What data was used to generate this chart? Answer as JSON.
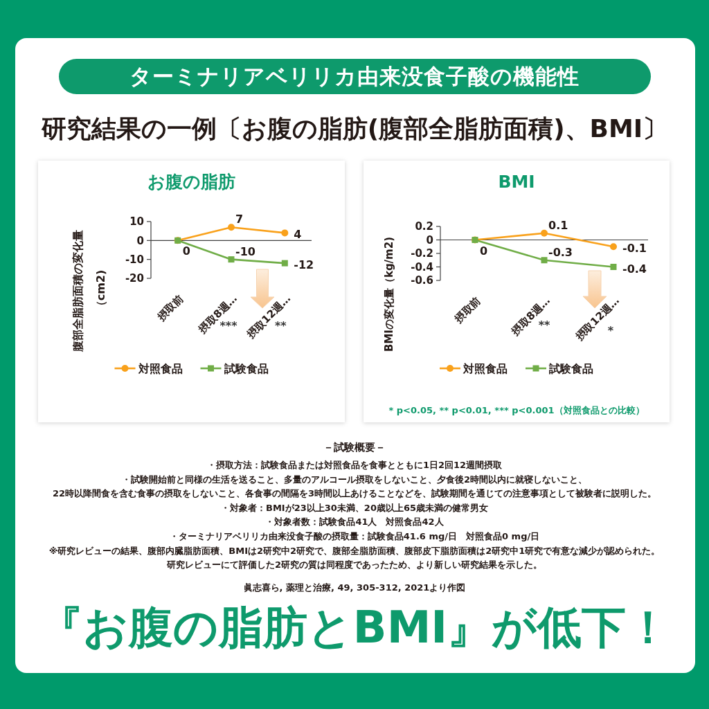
{
  "chart_data": [
    {
      "type": "other",
      "title": "ターミナリアベリリカ由来没食子酸の機能性",
      "subtitle": "研究結果の一例〔お腹の脂肪(腹部全脂肪面積)、BMI〕"
    },
    {
      "type": "line",
      "title": "お腹の脂肪",
      "ylabel": "腹部全脂肪面積の変化量（cm2)",
      "categories": [
        "摂取前",
        "摂取8週…",
        "摂取12週…"
      ],
      "series": [
        {
          "name": "対照食品",
          "color": "#f9a11b",
          "marker": "circle",
          "values": [
            0,
            7,
            4
          ],
          "value_labels": [
            null,
            "7",
            "4"
          ]
        },
        {
          "name": "試験食品",
          "color": "#70ad47",
          "marker": "square",
          "values": [
            0,
            -10,
            -12
          ],
          "value_labels": [
            "0",
            "-10",
            "-12"
          ]
        }
      ],
      "ylim": [
        -20,
        10
      ],
      "yticks": [
        -20,
        -10,
        0,
        10
      ],
      "legend": "bottom",
      "annotations": [
        "***",
        "**"
      ]
    },
    {
      "type": "line",
      "title": "BMI",
      "ylabel": "BMIの変化量（kg/m2)",
      "categories": [
        "摂取前",
        "摂取8週…",
        "摂取12週…"
      ],
      "series": [
        {
          "name": "対照食品",
          "color": "#f9a11b",
          "marker": "circle",
          "values": [
            0,
            0.1,
            -0.1
          ],
          "value_labels": [
            null,
            "0.1",
            "-0.1"
          ]
        },
        {
          "name": "試験食品",
          "color": "#70ad47",
          "marker": "square",
          "values": [
            0,
            -0.3,
            -0.4
          ],
          "value_labels": [
            "0",
            "-0.3",
            "-0.4"
          ]
        }
      ],
      "ylim": [
        -0.6,
        0.2
      ],
      "yticks": [
        -0.6,
        -0.4,
        -0.2,
        0,
        0.2
      ],
      "legend": "bottom",
      "annotations": [
        "**",
        "*",
        "* p<0.05, ** p<0.01, *** p<0.001（対照食品との比較）"
      ]
    },
    {
      "type": "other",
      "title": "－試験概要－",
      "annotations": [
        "・摂取方法：試験食品または対照食品を食事とともに1日2回12週間摂取",
        "・試験開始前と同様の生活を送ること、多量のアルコール摂取をしないこと、夕食後2時間以内に就寝しないこと、",
        "22時以降間食を含む食事の摂取をしないこと、各食事の間隔を3時間以上あけることなどを、試験期間を通じての注意事項として被験者に説明した。",
        "・対象者：BMIが23以上30未満、20歳以上65歳未満の健常男女",
        "・対象者数：試験食品41人　対照食品42人",
        "・ターミナリアベリリカ由来没食子酸の摂取量：試験食品41.6 mg/日　対照食品0 mg/日",
        "※研究レビューの結果、腹部内臓脂肪面積、BMIは2研究中2研究で、腹部全脂肪面積、腹部皮下脂肪面積は2研究中1研究で有意な減少が認められた。",
        "研究レビューにて評価した2研究の質は同程度であったため、より新しい研究結果を示した。",
        "眞志喜ら, 薬理と治療, 49, 305-312, 2021より作図"
      ]
    },
    {
      "type": "other",
      "title": "『お腹の脂肪とBMI』が低下！"
    }
  ]
}
